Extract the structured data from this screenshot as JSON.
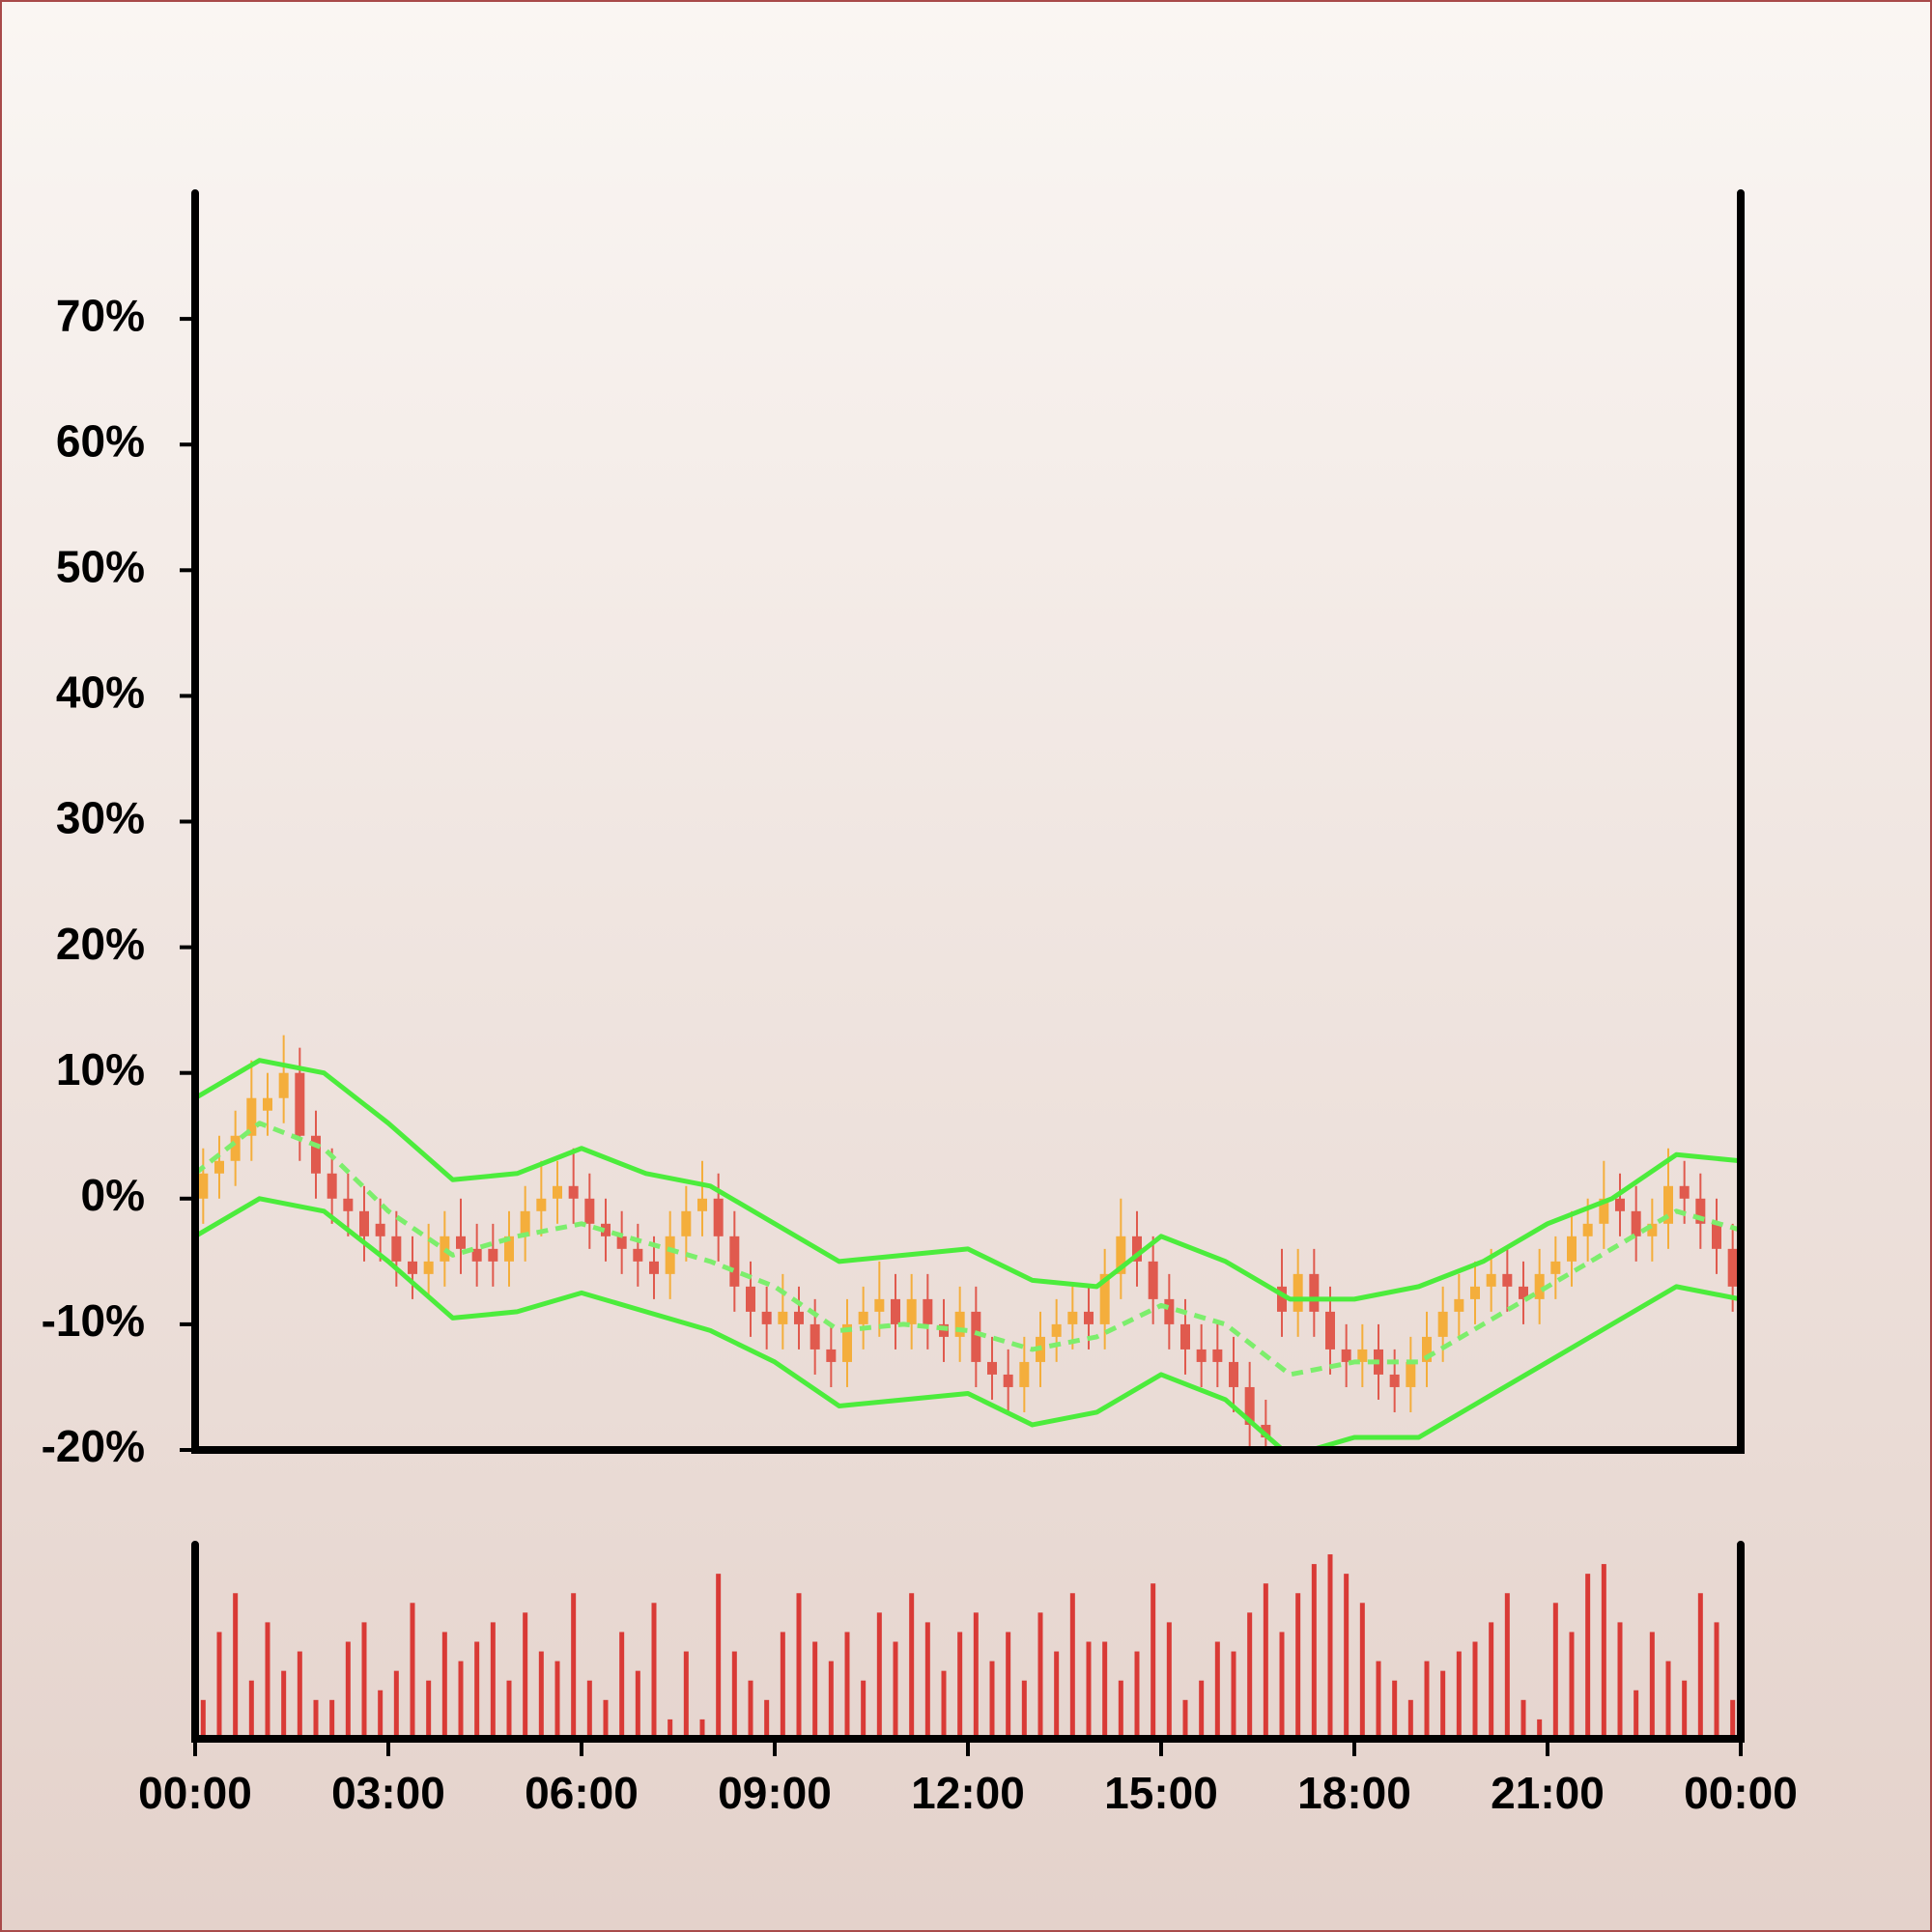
{
  "chart_data": [
    {
      "type": "candlestick",
      "x": [
        0,
        0.25,
        0.5,
        0.75,
        1,
        1.25,
        1.5,
        1.75,
        2,
        2.25,
        2.5,
        2.75,
        3,
        3.25,
        3.5,
        3.75,
        4,
        4.25,
        4.5,
        4.75,
        5,
        5.25,
        5.5,
        5.75,
        6,
        6.25,
        6.5,
        6.75,
        7,
        7.25,
        7.5,
        7.75,
        8,
        8.25,
        8.5,
        8.75,
        9,
        9.25,
        9.5,
        9.75,
        10,
        10.25,
        10.5,
        10.75,
        11,
        11.25,
        11.5,
        11.75,
        12,
        12.25,
        12.5,
        12.75,
        13,
        13.25,
        13.5,
        13.75,
        14,
        14.25,
        14.5,
        14.75,
        15,
        15.25,
        15.5,
        15.75,
        16,
        16.25,
        16.5,
        16.75,
        17,
        17.25,
        17.5,
        17.75,
        18,
        18.25,
        18.5,
        18.75,
        19,
        19.25,
        19.5,
        19.75,
        20,
        20.25,
        20.5,
        20.75,
        21,
        21.25,
        21.5,
        21.75,
        22,
        22.25,
        22.5,
        22.75,
        23,
        23.25,
        23.5,
        23.75
      ],
      "open": [
        0,
        2,
        3,
        5,
        7,
        8,
        10,
        5,
        2,
        0,
        -1,
        -2,
        -3,
        -5,
        -6,
        -5,
        -3,
        -4,
        -4,
        -5,
        -3,
        -1,
        0,
        1,
        0,
        -2,
        -3,
        -4,
        -5,
        -6,
        -3,
        -1,
        0,
        -3,
        -7,
        -9,
        -10,
        -9,
        -10,
        -12,
        -13,
        -10,
        -9,
        -8,
        -10,
        -8,
        -10,
        -11,
        -9,
        -13,
        -14,
        -15,
        -13,
        -11,
        -10,
        -9,
        -10,
        -6,
        -3,
        -5,
        -8,
        -10,
        -12,
        -12,
        -13,
        -15,
        -18,
        -7,
        -9,
        -6,
        -9,
        -12,
        -13,
        -12,
        -14,
        -15,
        -13,
        -11,
        -9,
        -8,
        -7,
        -6,
        -7,
        -8,
        -6,
        -5,
        -3,
        -2,
        0,
        -1,
        -3,
        -2,
        1,
        0,
        -2,
        -4
      ],
      "high": [
        4,
        5,
        7,
        11,
        10,
        13,
        12,
        7,
        4,
        2,
        1,
        0,
        -1,
        -3,
        -2,
        -1,
        0,
        -2,
        -2,
        -1,
        1,
        3,
        3,
        4,
        2,
        0,
        -1,
        -2,
        -3,
        -1,
        1,
        3,
        2,
        -1,
        -5,
        -7,
        -6,
        -7,
        -8,
        -10,
        -8,
        -7,
        -5,
        -6,
        -6,
        -6,
        -8,
        -7,
        -7,
        -11,
        -12,
        -11,
        -9,
        -8,
        -7,
        -7,
        -4,
        0,
        -1,
        -3,
        -6,
        -8,
        -10,
        -10,
        -11,
        -13,
        -16,
        -4,
        -4,
        -4,
        -7,
        -10,
        -10,
        -10,
        -12,
        -11,
        -9,
        -7,
        -6,
        -5,
        -4,
        -4,
        -5,
        -4,
        -3,
        -1,
        0,
        3,
        2,
        1,
        0,
        4,
        3,
        2,
        0,
        -2
      ],
      "low": [
        -2,
        0,
        1,
        3,
        5,
        6,
        3,
        0,
        -2,
        -3,
        -5,
        -5,
        -7,
        -8,
        -8,
        -7,
        -6,
        -7,
        -7,
        -7,
        -5,
        -3,
        -2,
        -2,
        -4,
        -5,
        -6,
        -7,
        -8,
        -8,
        -5,
        -3,
        -5,
        -9,
        -11,
        -12,
        -12,
        -12,
        -14,
        -15,
        -15,
        -12,
        -11,
        -12,
        -12,
        -12,
        -13,
        -13,
        -15,
        -16,
        -17,
        -17,
        -15,
        -13,
        -12,
        -12,
        -12,
        -8,
        -7,
        -10,
        -12,
        -14,
        -15,
        -15,
        -17,
        -20,
        -21,
        -11,
        -11,
        -11,
        -14,
        -15,
        -15,
        -16,
        -17,
        -17,
        -15,
        -13,
        -11,
        -10,
        -9,
        -9,
        -10,
        -10,
        -8,
        -7,
        -5,
        -4,
        -3,
        -5,
        -5,
        -4,
        -2,
        -4,
        -6,
        -9
      ],
      "close": [
        2,
        3,
        5,
        8,
        8,
        10,
        5,
        2,
        0,
        -1,
        -3,
        -3,
        -5,
        -6,
        -5,
        -3,
        -4,
        -5,
        -5,
        -3,
        -1,
        0,
        1,
        0,
        -2,
        -3,
        -4,
        -5,
        -6,
        -3,
        -1,
        0,
        -3,
        -7,
        -9,
        -10,
        -9,
        -10,
        -12,
        -13,
        -10,
        -9,
        -8,
        -10,
        -8,
        -10,
        -11,
        -9,
        -13,
        -14,
        -15,
        -13,
        -11,
        -10,
        -9,
        -10,
        -6,
        -3,
        -5,
        -8,
        -10,
        -12,
        -13,
        -13,
        -15,
        -18,
        -19,
        -9,
        -6,
        -9,
        -12,
        -13,
        -12,
        -14,
        -15,
        -13,
        -11,
        -9,
        -8,
        -7,
        -6,
        -7,
        -8,
        -6,
        -5,
        -3,
        -2,
        0,
        -1,
        -3,
        -2,
        1,
        0,
        -2,
        -4,
        -7
      ],
      "up_color": "#f4ae3c",
      "down_color": "#e05a4e",
      "lines": [
        {
          "x": [
            0,
            1,
            2,
            3,
            4,
            5,
            6,
            7,
            8,
            9,
            10,
            11,
            12,
            13,
            14,
            15,
            16,
            17,
            18,
            19,
            20,
            21,
            22,
            23,
            24
          ],
          "values": [
            8,
            11,
            10,
            6,
            1.5,
            2,
            4,
            2,
            1,
            -2,
            -5,
            -4.5,
            -4,
            -6.5,
            -7,
            -3,
            -5,
            -8,
            -8,
            -7,
            -5,
            -2,
            0,
            3.5,
            3
          ],
          "color": "#4cec3c",
          "dashed": false
        },
        {
          "x": [
            0,
            1,
            2,
            3,
            4,
            5,
            6,
            7,
            8,
            9,
            10,
            11,
            12,
            13,
            14,
            15,
            16,
            17,
            18,
            19,
            20,
            21,
            22,
            23,
            24
          ],
          "values": [
            2,
            6,
            4,
            -1,
            -4.5,
            -3,
            -2,
            -3.5,
            -5,
            -7,
            -10.5,
            -10,
            -10.5,
            -12,
            -11,
            -8.5,
            -10,
            -14,
            -13,
            -13,
            -10,
            -7,
            -4,
            -1,
            -2.5
          ],
          "color": "#7cee6c",
          "dashed": true
        },
        {
          "x": [
            0,
            1,
            2,
            3,
            4,
            5,
            6,
            7,
            8,
            9,
            10,
            11,
            12,
            13,
            14,
            15,
            16,
            17,
            18,
            19,
            20,
            21,
            22,
            23,
            24
          ],
          "values": [
            -3,
            0,
            -1,
            -5,
            -9.5,
            -9,
            -7.5,
            -9,
            -10.5,
            -13,
            -16.5,
            -16,
            -15.5,
            -18,
            -17,
            -14,
            -16,
            -20.5,
            -19,
            -19,
            -16,
            -13,
            -10,
            -7,
            -8
          ],
          "color": "#4cec3c",
          "dashed": false
        }
      ],
      "xlim": [
        0,
        24
      ],
      "ylim": [
        -20,
        80
      ],
      "yticks": [
        {
          "value": -20,
          "label": "-20%"
        },
        {
          "value": -10,
          "label": "-10%"
        },
        {
          "value": 0,
          "label": "0%"
        },
        {
          "value": 10,
          "label": "10%"
        },
        {
          "value": 20,
          "label": "20%"
        },
        {
          "value": 30,
          "label": "30%"
        },
        {
          "value": 40,
          "label": "40%"
        },
        {
          "value": 50,
          "label": "50%"
        },
        {
          "value": 60,
          "label": "60%"
        },
        {
          "value": 70,
          "label": "70%"
        }
      ]
    },
    {
      "type": "bar",
      "x": [
        0,
        0.25,
        0.5,
        0.75,
        1,
        1.25,
        1.5,
        1.75,
        2,
        2.25,
        2.5,
        2.75,
        3,
        3.25,
        3.5,
        3.75,
        4,
        4.25,
        4.5,
        4.75,
        5,
        5.25,
        5.5,
        5.75,
        6,
        6.25,
        6.5,
        6.75,
        7,
        7.25,
        7.5,
        7.75,
        8,
        8.25,
        8.5,
        8.75,
        9,
        9.25,
        9.5,
        9.75,
        10,
        10.25,
        10.5,
        10.75,
        11,
        11.25,
        11.5,
        11.75,
        12,
        12.25,
        12.5,
        12.75,
        13,
        13.25,
        13.5,
        13.75,
        14,
        14.25,
        14.5,
        14.75,
        15,
        15.25,
        15.5,
        15.75,
        16,
        16.25,
        16.5,
        16.75,
        17,
        17.25,
        17.5,
        17.75,
        18,
        18.25,
        18.5,
        18.75,
        19,
        19.25,
        19.5,
        19.75,
        20,
        20.25,
        20.5,
        20.75,
        21,
        21.25,
        21.5,
        21.75,
        22,
        22.25,
        22.5,
        22.75,
        23,
        23.25,
        23.5,
        23.75
      ],
      "values": [
        20,
        55,
        75,
        30,
        60,
        35,
        45,
        20,
        20,
        50,
        60,
        25,
        35,
        70,
        30,
        55,
        40,
        50,
        60,
        30,
        65,
        45,
        40,
        75,
        30,
        20,
        55,
        35,
        70,
        10,
        45,
        10,
        85,
        45,
        30,
        20,
        55,
        75,
        50,
        40,
        55,
        30,
        65,
        50,
        75,
        60,
        35,
        55,
        65,
        40,
        55,
        30,
        65,
        45,
        75,
        50,
        50,
        30,
        45,
        80,
        60,
        20,
        30,
        50,
        45,
        65,
        80,
        55,
        75,
        90,
        95,
        85,
        70,
        40,
        30,
        20,
        40,
        35,
        45,
        50,
        60,
        75,
        20,
        10,
        70,
        55,
        85,
        90,
        60,
        25,
        55,
        40,
        30,
        75,
        60,
        20
      ],
      "color": "#d93a36",
      "xlim": [
        0,
        24
      ],
      "ylim": [
        0,
        100
      ],
      "xticks": [
        {
          "value": 0,
          "label": "00:00"
        },
        {
          "value": 3,
          "label": "03:00"
        },
        {
          "value": 6,
          "label": "06:00"
        },
        {
          "value": 9,
          "label": "09:00"
        },
        {
          "value": 12,
          "label": "12:00"
        },
        {
          "value": 15,
          "label": "15:00"
        },
        {
          "value": 18,
          "label": "18:00"
        },
        {
          "value": 21,
          "label": "21:00"
        },
        {
          "value": 24,
          "label": "00:00"
        }
      ]
    }
  ]
}
